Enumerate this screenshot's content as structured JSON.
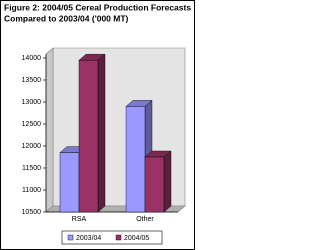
{
  "chart_data": {
    "type": "bar3d",
    "title": [
      "Figure 2: 2004/05 Cereal Production Forecasts",
      "Compared to 2003/04 ('000 MT)"
    ],
    "categories": [
      "RSA",
      "Other"
    ],
    "series": [
      {
        "name": "2003/04",
        "color": "#9999ff",
        "values": [
          11850,
          12900
        ]
      },
      {
        "name": "2004/05",
        "color": "#993366",
        "values": [
          13950,
          11750
        ]
      }
    ],
    "ylim": [
      10500,
      14000
    ],
    "yticks": [
      10500,
      11000,
      11500,
      12000,
      12500,
      13000,
      13500,
      14000
    ],
    "grid": false,
    "legend": "bottom"
  }
}
